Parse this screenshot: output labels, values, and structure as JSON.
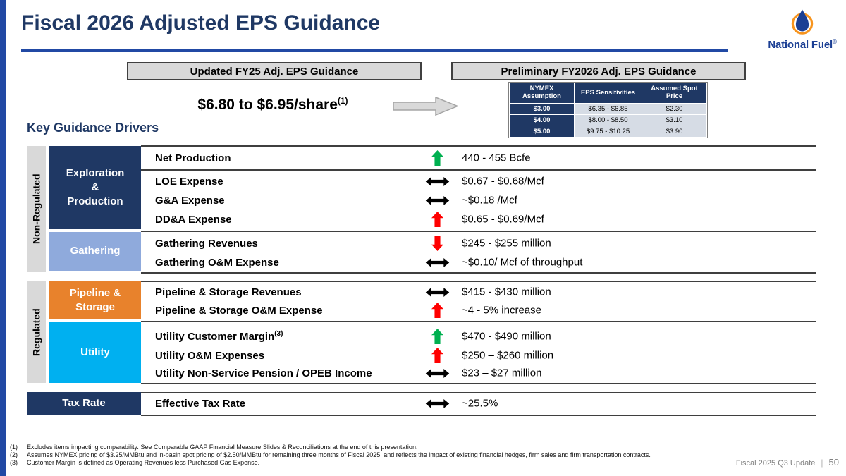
{
  "slide": {
    "title": "Fiscal 2026 Adjusted EPS Guidance",
    "brand": "National Fuel",
    "brand_registered": "®"
  },
  "headers": {
    "left": "Updated FY25 Adj. EPS Guidance",
    "right": "Preliminary FY2026 Adj. EPS Guidance"
  },
  "fy25": {
    "value": "$6.80 to $6.95/share",
    "footnote_ref": "(1)"
  },
  "sensitivity_table": {
    "headers": [
      "NYMEX Assumption",
      "EPS Sensitivities",
      "Assumed Spot Price"
    ],
    "rows": [
      [
        "$3.00",
        "$6.35 - $6.85",
        "$2.30"
      ],
      [
        "$4.00",
        "$8.00 - $8.50",
        "$3.10"
      ],
      [
        "$5.00",
        "$9.75 - $10.25",
        "$3.90"
      ]
    ]
  },
  "drivers": {
    "heading": "Key Guidance Drivers",
    "groups": [
      {
        "side_label": "Non-Regulated",
        "categories": [
          {
            "label": "Exploration\n&\nProduction"
          },
          {
            "label": "Gathering"
          }
        ],
        "rows": [
          {
            "label": "Net Production",
            "trend": "up-green",
            "value": "440 - 455 Bcfe"
          },
          {
            "label": "LOE Expense",
            "trend": "flat-black",
            "value": "$0.67 - $0.68/Mcf"
          },
          {
            "label": "G&A Expense",
            "trend": "flat-black",
            "value": "~$0.18 /Mcf"
          },
          {
            "label": "DD&A Expense",
            "trend": "up-red",
            "value": "$0.65 - $0.69/Mcf"
          },
          {
            "label": "Gathering Revenues",
            "trend": "down-red",
            "value": "$245 - $255 million"
          },
          {
            "label": "Gathering O&M Expense",
            "trend": "flat-black",
            "value": "~$0.10/ Mcf of throughput"
          }
        ]
      },
      {
        "side_label": "Regulated",
        "categories": [
          {
            "label": "Pipeline &\nStorage"
          },
          {
            "label": "Utility"
          }
        ],
        "rows": [
          {
            "label": "Pipeline & Storage Revenues",
            "trend": "flat-black",
            "value": "$415 - $430 million"
          },
          {
            "label": "Pipeline & Storage O&M Expense",
            "trend": "up-red",
            "value": "~4 - 5% increase"
          },
          {
            "label": "Utility Customer Margin",
            "sup": "(3)",
            "trend": "up-green",
            "value": "$470 - $490 million"
          },
          {
            "label": "Utility O&M Expenses",
            "trend": "up-red",
            "value": "$250 – $260 million"
          },
          {
            "label": "Utility Non-Service Pension / OPEB Income",
            "trend": "flat-black",
            "value": "$23 – $27 million"
          }
        ]
      },
      {
        "side_label": "",
        "categories": [
          {
            "label": "Tax Rate"
          }
        ],
        "rows": [
          {
            "label": "Effective Tax Rate",
            "trend": "flat-black",
            "value": "~25.5%"
          }
        ]
      }
    ]
  },
  "footnotes": [
    {
      "num": "(1)",
      "text": "Excludes items impacting comparability. See Comparable GAAP Financial Measure Slides & Reconciliations at the end of this presentation."
    },
    {
      "num": "(2)",
      "text": "Assumes NYMEX pricing of $3.25/MMBtu and in-basin spot pricing of $2.50/MMBtu for remaining three months of Fiscal 2025, and reflects the impact of existing financial hedges, firm sales and firm transportation contracts."
    },
    {
      "num": "(3)",
      "text": "Customer Margin is defined as Operating Revenues less Purchased Gas Expense."
    }
  ],
  "footer": {
    "label": "Fiscal 2025 Q3 Update",
    "separator": "|",
    "page": "50"
  },
  "colors": {
    "navy": "#1F3864",
    "royal_blue": "#2149A4",
    "light_blue": "#8FAADC",
    "orange": "#E8822C",
    "cyan": "#00B0F0",
    "green_arrow": "#00B050",
    "red_arrow": "#FF0000",
    "gray_box": "#D9D9D9"
  }
}
